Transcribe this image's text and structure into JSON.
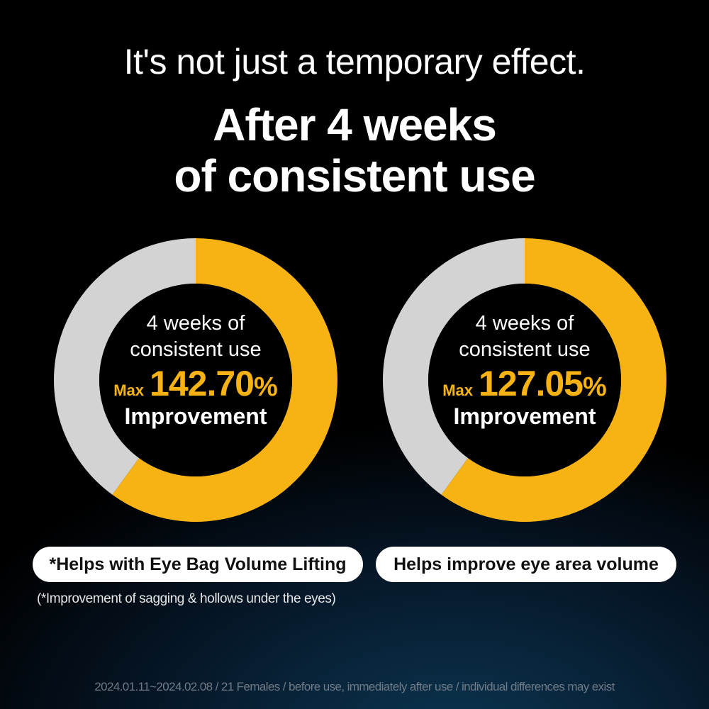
{
  "header": {
    "subtitle": "It's not just a temporary effect.",
    "title_line1": "After 4 weeks",
    "title_line2": "of consistent use"
  },
  "colors": {
    "accent": "#f7b314",
    "track": "#d3d3d3",
    "center": "#000000"
  },
  "chart_data": [
    {
      "type": "pie",
      "style": "donut",
      "slices": [
        {
          "label": "Improvement",
          "value": 0.6,
          "color": "#f7b314"
        },
        {
          "label": "",
          "value": 0.4,
          "color": "#d3d3d3"
        }
      ],
      "center_text": {
        "line1": "4 weeks of",
        "line2": "consistent use",
        "prefix": "Max",
        "value": "142.70",
        "unit": "%",
        "label": "Improvement"
      },
      "caption": "*Helps with Eye Bag Volume Lifting",
      "footnote": "(*Improvement of sagging & hollows under the eyes)"
    },
    {
      "type": "pie",
      "style": "donut",
      "slices": [
        {
          "label": "Improvement",
          "value": 0.6,
          "color": "#f7b314"
        },
        {
          "label": "",
          "value": 0.4,
          "color": "#d3d3d3"
        }
      ],
      "center_text": {
        "line1": "4 weeks of",
        "line2": "consistent use",
        "prefix": "Max",
        "value": "127.05",
        "unit": "%",
        "label": "Improvement"
      },
      "caption": "Helps improve eye area volume"
    }
  ],
  "source_note": "2024.01.11~2024.02.08 / 21 Females / before use, immediately after use / individual differences may exist"
}
